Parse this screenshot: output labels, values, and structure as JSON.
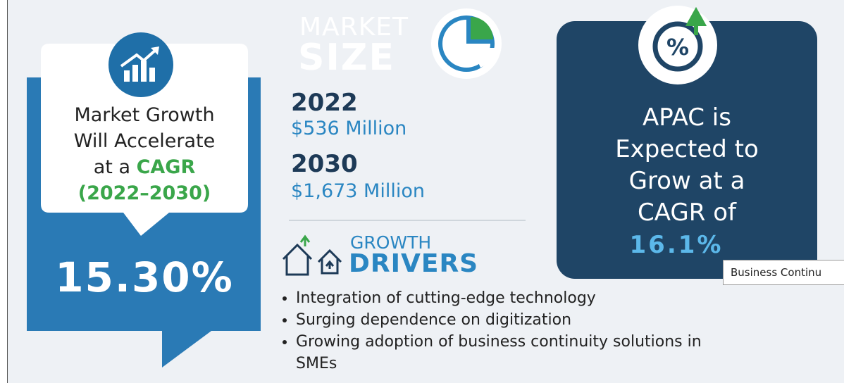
{
  "left": {
    "lines": [
      "Market Growth",
      "Will Accelerate",
      "at a"
    ],
    "highlight": "CAGR",
    "period": "(2022–2030)",
    "value": "15.30%"
  },
  "market_size": {
    "title_top": "MARKET",
    "title_bottom": "SIZE",
    "entries": [
      {
        "year": "2022",
        "value": "$536 Million"
      },
      {
        "year": "2030",
        "value": "$1,673 Million"
      }
    ]
  },
  "growth_drivers": {
    "title_top": "GROWTH",
    "title_bottom": "DRIVERS",
    "items": [
      "Integration of cutting-edge technology",
      "Surging dependence on digitization",
      "Growing adoption of business continuity solutions in SMEs"
    ]
  },
  "apac": {
    "lines": [
      "APAC is",
      "Expected to",
      "Grow at a",
      "CAGR of"
    ],
    "value": "16.1%"
  },
  "tooltip": "Business Continu"
}
